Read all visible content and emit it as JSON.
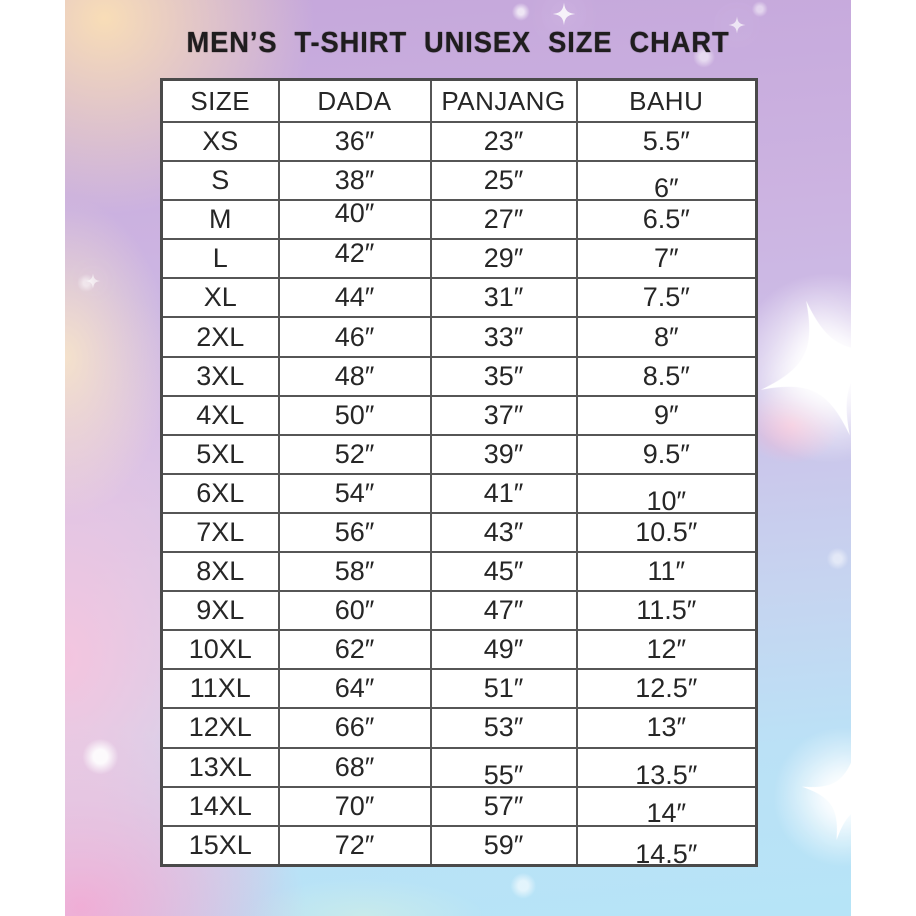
{
  "title": "MEN’S T-SHIRT UNISEX SIZE CHART",
  "chart_data": {
    "type": "table",
    "title": "MEN’S T-SHIRT UNISEX SIZE CHART",
    "columns": [
      "SIZE",
      "DADA",
      "PANJANG",
      "BAHU"
    ],
    "rows": [
      [
        "XS",
        "36″",
        "23″",
        "5.5″"
      ],
      [
        "S",
        "38″",
        "25″",
        "6″"
      ],
      [
        "M",
        "40″",
        "27″",
        "6.5″"
      ],
      [
        "L",
        "42″",
        "29″",
        "7″"
      ],
      [
        "XL",
        "44″",
        "31″",
        "7.5″"
      ],
      [
        "2XL",
        "46″",
        "33″",
        "8″"
      ],
      [
        "3XL",
        "48″",
        "35″",
        "8.5″"
      ],
      [
        "4XL",
        "50″",
        "37″",
        "9″"
      ],
      [
        "5XL",
        "52″",
        "39″",
        "9.5″"
      ],
      [
        "6XL",
        "54″",
        "41″",
        "10″"
      ],
      [
        "7XL",
        "56″",
        "43″",
        "10.5″"
      ],
      [
        "8XL",
        "58″",
        "45″",
        "11″"
      ],
      [
        "9XL",
        "60″",
        "47″",
        "11.5″"
      ],
      [
        "10XL",
        "62″",
        "49″",
        "12″"
      ],
      [
        "11XL",
        "64″",
        "51″",
        "12.5″"
      ],
      [
        "12XL",
        "66″",
        "53″",
        "13″"
      ],
      [
        "13XL",
        "68″",
        "55″",
        "13.5″"
      ],
      [
        "14XL",
        "70″",
        "57″",
        "14″"
      ],
      [
        "15XL",
        "72″",
        "59″",
        "14.5″"
      ]
    ]
  },
  "colors": {
    "title_text": "#1f1d1e",
    "table_border": "#565656",
    "cell_text": "#262626",
    "cell_background": "#ffffff",
    "background_lavender": "#c5a7db",
    "background_peach": "#fbe0b5",
    "background_pink": "#f6c4de",
    "background_blue": "#b6e4f7",
    "sparkle": "#ffffff"
  }
}
